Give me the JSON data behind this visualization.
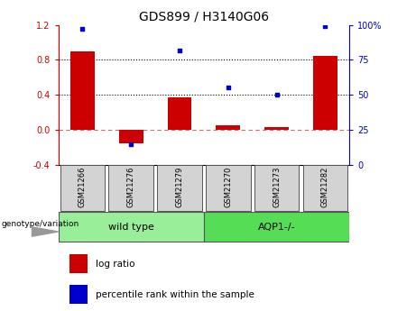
{
  "title": "GDS899 / H3140G06",
  "samples": [
    "GSM21266",
    "GSM21276",
    "GSM21279",
    "GSM21270",
    "GSM21273",
    "GSM21282"
  ],
  "log_ratio": [
    0.9,
    -0.15,
    0.37,
    0.05,
    0.03,
    0.85
  ],
  "percentile_rank": [
    97,
    15,
    82,
    55,
    50,
    99
  ],
  "bar_color": "#cc0000",
  "dot_color": "#0000cc",
  "ylim_left": [
    -0.4,
    1.2
  ],
  "ylim_right": [
    0,
    100
  ],
  "yticks_left": [
    -0.4,
    0.0,
    0.4,
    0.8,
    1.2
  ],
  "yticks_right": [
    0,
    25,
    50,
    75,
    100
  ],
  "hline_y_left": [
    0.4,
    0.8
  ],
  "zero_line_y": 0.0,
  "groups": [
    {
      "label": "wild type",
      "n": 3,
      "color": "#99ee99"
    },
    {
      "label": "AQP1-/-",
      "n": 3,
      "color": "#55dd55"
    }
  ],
  "group_label": "genotype/variation",
  "legend_bar_label": "log ratio",
  "legend_dot_label": "percentile rank within the sample",
  "title_fontsize": 10,
  "tick_fontsize": 7,
  "sample_fontsize": 6,
  "group_fontsize": 8,
  "legend_fontsize": 7.5
}
